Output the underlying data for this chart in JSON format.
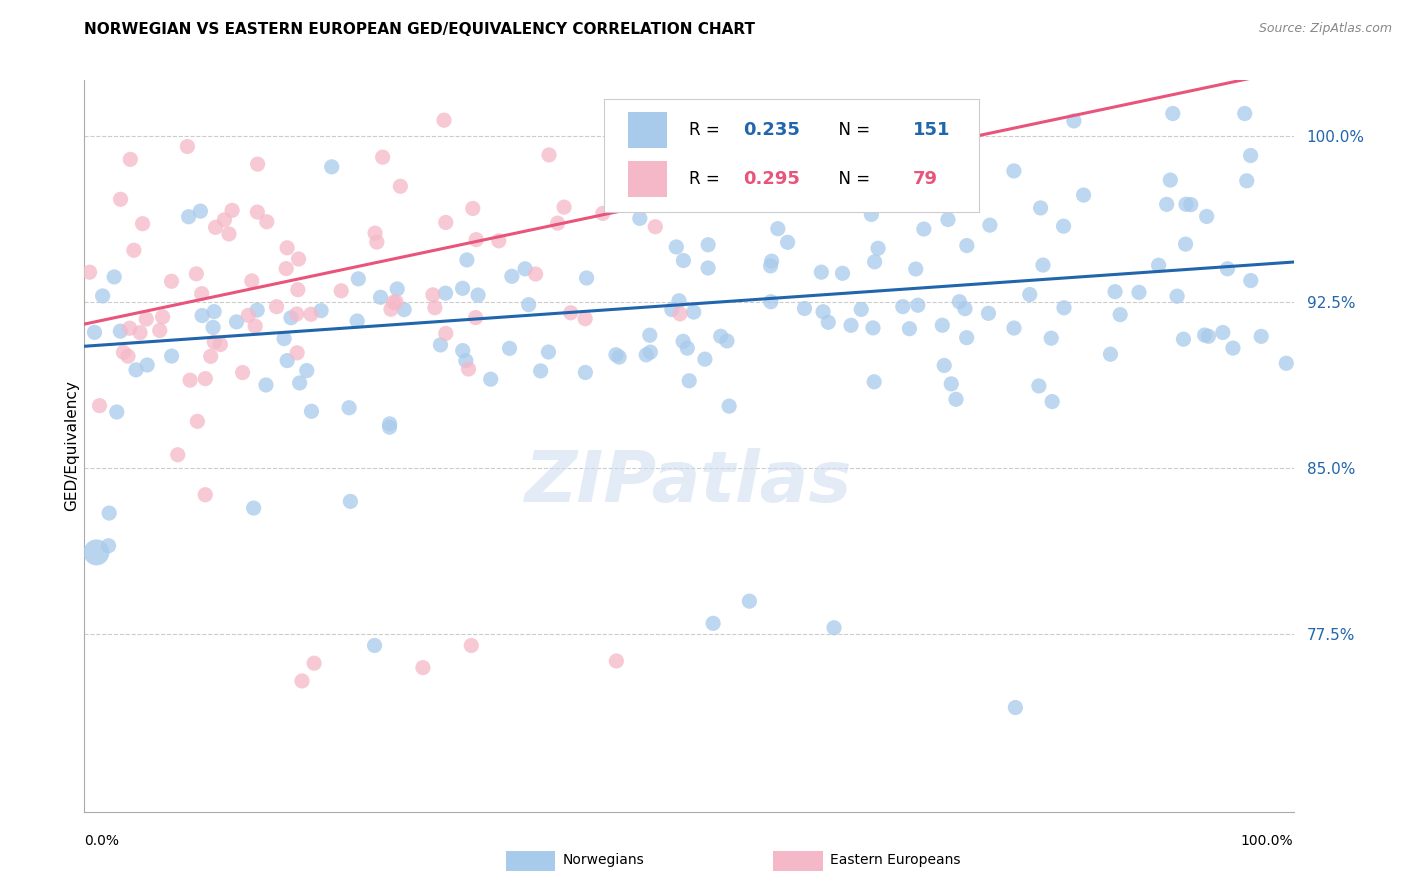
{
  "title": "NORWEGIAN VS EASTERN EUROPEAN GED/EQUIVALENCY CORRELATION CHART",
  "source": "Source: ZipAtlas.com",
  "ylabel": "GED/Equivalency",
  "xlim": [
    0.0,
    1.0
  ],
  "ylim": [
    0.695,
    1.025
  ],
  "yticks": [
    0.775,
    0.85,
    0.925,
    1.0
  ],
  "ytick_labels": [
    "77.5%",
    "85.0%",
    "92.5%",
    "100.0%"
  ],
  "norwegian_color": "#a8caeb",
  "eastern_color": "#f5b8c8",
  "norwegian_line_color": "#2166ac",
  "eastern_line_color": "#e8547a",
  "background_color": "#ffffff",
  "watermark_color": "#d0dff0",
  "norwegian_R": 0.235,
  "norwegian_N": 151,
  "eastern_R": 0.295,
  "eastern_N": 79,
  "norwegian_intercept": 0.905,
  "norwegian_slope": 0.038,
  "eastern_intercept": 0.915,
  "eastern_slope": 0.115,
  "title_fontsize": 11,
  "tick_fontsize": 11,
  "legend_fontsize": 12
}
